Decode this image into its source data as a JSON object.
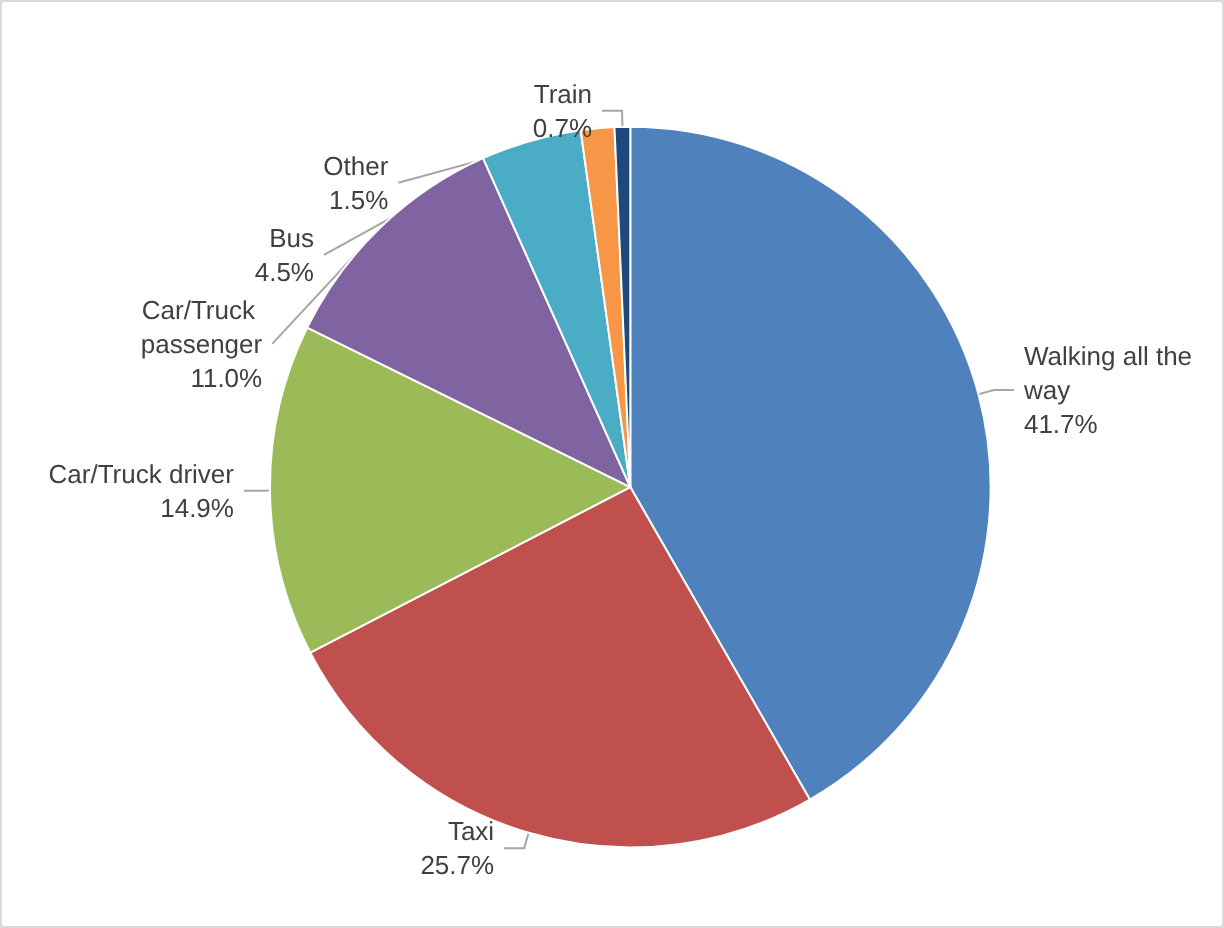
{
  "chart_data": {
    "type": "pie",
    "categories": [
      "Walking all the way",
      "Taxi",
      "Car/Truck driver",
      "Car/Truck passenger",
      "Bus",
      "Other",
      "Train"
    ],
    "values": [
      41.7,
      25.7,
      14.9,
      11.0,
      4.5,
      1.5,
      0.7
    ],
    "colors": [
      "#4f81bd",
      "#c0504d",
      "#9bbb59",
      "#8064a2",
      "#4bacc6",
      "#f79646",
      "#1f497d"
    ],
    "value_labels": [
      "41.7%",
      "25.7%",
      "14.9%",
      "11.0%",
      "4.5%",
      "1.5%",
      "0.7%"
    ],
    "legend": false
  }
}
